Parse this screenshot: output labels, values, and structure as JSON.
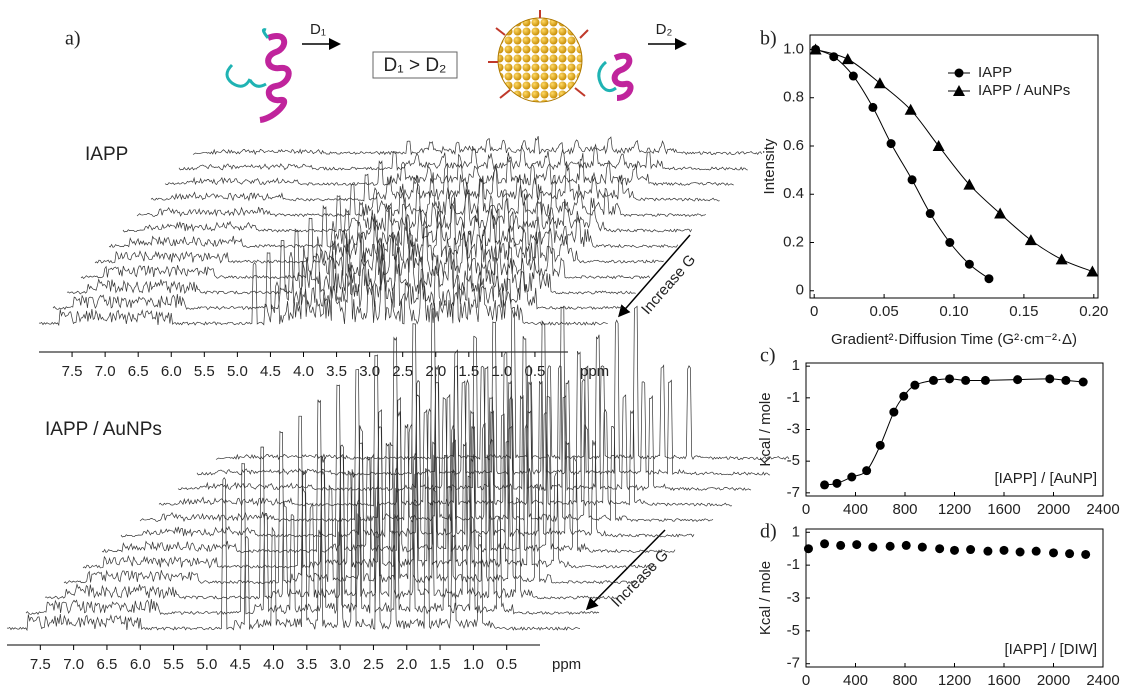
{
  "illustration": {
    "d1": "D₁",
    "d2": "D₂",
    "relation": "D₁ > D₂"
  },
  "chart_data": [
    {
      "type": "spectrum",
      "panel": "a)",
      "title": "IAPP",
      "xlabel": "ppm",
      "annotation": "Increase G",
      "xlim": [
        8.0,
        0.0
      ],
      "xticks": [
        7.5,
        {
          "value": 7,
          "label": "7.0"
        },
        6.5,
        {
          "value": 6,
          "label": "6.0"
        },
        5.5,
        {
          "value": 5,
          "label": "5.0"
        },
        4.5,
        {
          "value": 4,
          "label": "4.0"
        },
        3.5,
        {
          "value": 3,
          "label": "3.0"
        },
        2.5,
        {
          "value": 2,
          "label": "2.0"
        },
        1.5,
        {
          "value": 1,
          "label": "1.0"
        },
        0.5
      ]
    },
    {
      "type": "spectrum",
      "title": "IAPP / AuNPs",
      "xlabel": "ppm",
      "annotation": "Increase G",
      "xlim": [
        8.0,
        0.0
      ],
      "xticks": [
        7.5,
        {
          "value": 7,
          "label": "7.0"
        },
        6.5,
        {
          "value": 6,
          "label": "6.0"
        },
        5.5,
        {
          "value": 5,
          "label": "5.0"
        },
        4.5,
        {
          "value": 4,
          "label": "4.0"
        },
        3.5,
        {
          "value": 3,
          "label": "3.0"
        },
        2.5,
        {
          "value": 2,
          "label": "2.0"
        },
        1.5,
        {
          "value": 1,
          "label": "1.0"
        },
        0.5
      ]
    },
    {
      "type": "line",
      "panel": "b)",
      "xlabel": "Gradient²·Diffusion Time (G²·cm⁻²·Δ)",
      "ylabel": "Intensity",
      "xlim": [
        -0.003,
        0.203
      ],
      "ylim": [
        -0.03,
        1.06
      ],
      "xticks": [
        0,
        0.05,
        {
          "value": 0.1,
          "label": "0.10"
        },
        0.15,
        {
          "value": 0.2,
          "label": "0.20"
        }
      ],
      "yticks": [
        0,
        0.2,
        0.4,
        0.6,
        0.8,
        {
          "value": 1,
          "label": "1.0"
        }
      ],
      "legend": "upper right",
      "series": [
        {
          "name": "IAPP",
          "color": "#000000",
          "marker": "circle",
          "x": [
            0.001,
            0.014,
            0.028,
            0.042,
            0.055,
            0.07,
            0.083,
            0.097,
            0.111,
            0.125
          ],
          "values": [
            1.0,
            0.97,
            0.89,
            0.76,
            0.61,
            0.46,
            0.32,
            0.2,
            0.11,
            0.05
          ]
        },
        {
          "name": "IAPP / AuNPs",
          "color": "#000000",
          "marker": "triangle",
          "x": [
            0.001,
            0.024,
            0.047,
            0.069,
            0.089,
            0.111,
            0.133,
            0.155,
            0.177,
            0.199
          ],
          "values": [
            1.0,
            0.96,
            0.86,
            0.75,
            0.6,
            0.44,
            0.32,
            0.21,
            0.13,
            0.08
          ]
        }
      ]
    },
    {
      "type": "line",
      "panel": "c)",
      "ylabel": "Kcal / mole",
      "annotation": "[IAPP] / [AuNP]",
      "xlim": [
        0,
        2400
      ],
      "ylim": [
        -7.2,
        1.2
      ],
      "xticks": [
        0,
        400,
        800,
        1200,
        1600,
        2000,
        2400
      ],
      "yticks": [
        -7,
        -5,
        -3,
        -1,
        1
      ],
      "color": "#000000",
      "marker": "circle",
      "x": [
        150,
        250,
        370,
        490,
        600,
        710,
        790,
        880,
        1030,
        1160,
        1290,
        1450,
        1710,
        1970,
        2100,
        2240
      ],
      "values": [
        -6.5,
        -6.4,
        -6.0,
        -5.6,
        -4.0,
        -1.9,
        -0.9,
        -0.2,
        0.1,
        0.2,
        0.1,
        0.1,
        0.15,
        0.2,
        0.1,
        0.0
      ]
    },
    {
      "type": "scatter",
      "panel": "d)",
      "ylabel": "Kcal / mole",
      "annotation": "[IAPP] / [DIW]",
      "xlim": [
        0,
        2400
      ],
      "ylim": [
        -7.2,
        1.2
      ],
      "xticks": [
        0,
        400,
        800,
        1200,
        1600,
        2000,
        2400
      ],
      "yticks": [
        -7,
        -5,
        -3,
        -1,
        1
      ],
      "color": "#000000",
      "marker": "circle",
      "x": [
        20,
        150,
        280,
        410,
        540,
        680,
        810,
        940,
        1080,
        1200,
        1330,
        1470,
        1600,
        1730,
        1860,
        2000,
        2130,
        2260
      ],
      "values": [
        0.0,
        0.3,
        0.2,
        0.25,
        0.1,
        0.15,
        0.2,
        0.1,
        0.0,
        -0.1,
        -0.05,
        -0.15,
        -0.1,
        -0.2,
        -0.15,
        -0.25,
        -0.3,
        -0.35
      ]
    }
  ]
}
